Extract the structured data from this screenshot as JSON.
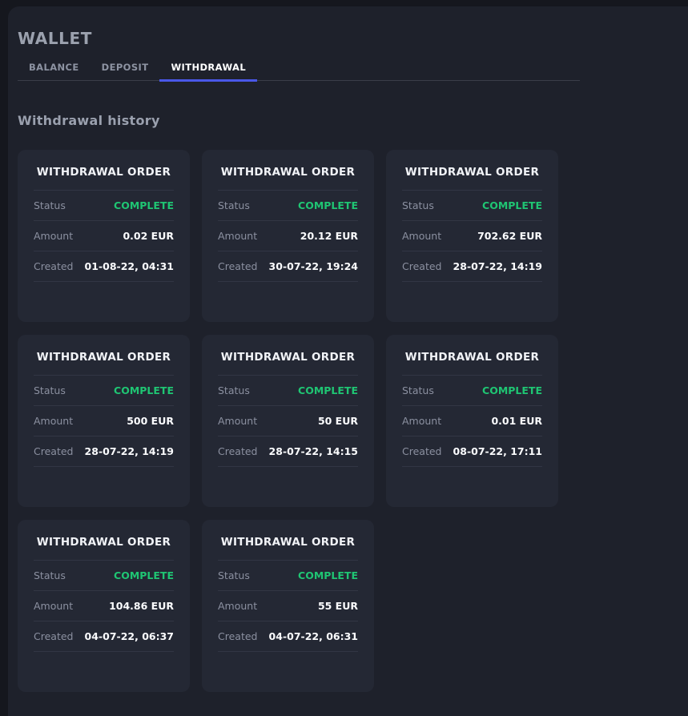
{
  "page": {
    "title": "WALLET"
  },
  "tabs": [
    {
      "label": "BALANCE",
      "active": false
    },
    {
      "label": "DEPOSIT",
      "active": false
    },
    {
      "label": "WITHDRAWAL",
      "active": true
    }
  ],
  "section": {
    "heading": "Withdrawal history"
  },
  "card_labels": {
    "title": "WITHDRAWAL ORDER",
    "status": "Status",
    "amount": "Amount",
    "created": "Created"
  },
  "orders": [
    {
      "status": "COMPLETE",
      "amount": "0.02 EUR",
      "created": "01-08-22, 04:31"
    },
    {
      "status": "COMPLETE",
      "amount": "20.12 EUR",
      "created": "30-07-22, 19:24"
    },
    {
      "status": "COMPLETE",
      "amount": "702.62 EUR",
      "created": "28-07-22, 14:19"
    },
    {
      "status": "COMPLETE",
      "amount": "500 EUR",
      "created": "28-07-22, 14:19"
    },
    {
      "status": "COMPLETE",
      "amount": "50 EUR",
      "created": "28-07-22, 14:15"
    },
    {
      "status": "COMPLETE",
      "amount": "0.01 EUR",
      "created": "08-07-22, 17:11"
    },
    {
      "status": "COMPLETE",
      "amount": "104.86 EUR",
      "created": "04-07-22, 06:37"
    },
    {
      "status": "COMPLETE",
      "amount": "55 EUR",
      "created": "04-07-22, 06:31"
    }
  ],
  "colors": {
    "accent": "#4a58e8",
    "green": "#1fc573",
    "backdrop": "#15171e",
    "panel_bg": "#1e212b",
    "card_bg": "#242834"
  }
}
